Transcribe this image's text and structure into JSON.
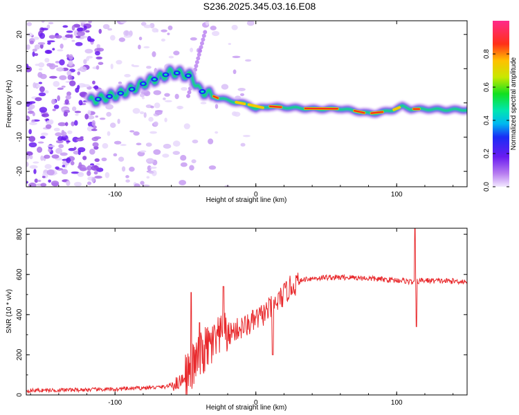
{
  "title": "S236.2025.345.03.16.E08",
  "chart_data": [
    {
      "type": "heatmap",
      "xlabel": "Height of straight line (km)",
      "ylabel": "Frequency (Hz)",
      "xlim": [
        -163,
        150
      ],
      "ylim": [
        -24.5,
        24
      ],
      "xticks": [
        -100,
        0,
        100
      ],
      "yticks": [
        -20,
        -10,
        0,
        10,
        20
      ],
      "colorbar": {
        "label": "Normalized spectral amplitude",
        "range": [
          0,
          1
        ],
        "ticks": [
          0.0,
          0.2,
          0.4,
          0.6,
          0.8
        ]
      },
      "ridge": {
        "x": [
          -118,
          -108,
          -98,
          -88,
          -78,
          -68,
          -60,
          -52,
          -45,
          -40,
          -35,
          -28,
          -20,
          -12,
          -5,
          0,
          10,
          20,
          30,
          40,
          50,
          60,
          70,
          78,
          85,
          92,
          98,
          104,
          110,
          120,
          135,
          148
        ],
        "freq": [
          0.5,
          1.5,
          2.5,
          4.0,
          6.0,
          7.5,
          9.0,
          8.5,
          7.5,
          3.5,
          3.0,
          1.5,
          0.8,
          0.0,
          -0.5,
          -1.8,
          -1.0,
          -1.3,
          -1.5,
          -1.8,
          -1.8,
          -1.7,
          -2.3,
          -3.0,
          -3.0,
          -2.5,
          -2.0,
          -1.0,
          -1.8,
          -1.8,
          -2.0,
          -2.0
        ]
      }
    },
    {
      "type": "line",
      "xlabel": "Height of straight line (km)",
      "ylabel": "SNR (10 * v/v)",
      "xlim": [
        -163,
        150
      ],
      "ylim": [
        0,
        830
      ],
      "xticks": [
        -100,
        0,
        100
      ],
      "yticks": [
        0,
        200,
        400,
        600,
        800
      ],
      "color": "#e8282b",
      "envelope": {
        "x": [
          -163,
          -100,
          -80,
          -65,
          -55,
          -48,
          -42,
          -35,
          -25,
          -15,
          -5,
          5,
          15,
          25,
          35,
          50,
          70,
          90,
          105,
          112,
          118,
          130,
          150
        ],
        "y": [
          22,
          28,
          35,
          40,
          60,
          110,
          170,
          230,
          280,
          320,
          350,
          400,
          460,
          540,
          578,
          585,
          585,
          575,
          570,
          560,
          570,
          568,
          565
        ]
      },
      "spikes": [
        {
          "x": -46,
          "y": 510
        },
        {
          "x": -40,
          "y": 360
        },
        {
          "x": -23,
          "y": 540
        },
        {
          "x": 12,
          "y": 200
        },
        {
          "x": 113,
          "y": 830
        },
        {
          "x": 114,
          "y": 340
        }
      ]
    }
  ]
}
